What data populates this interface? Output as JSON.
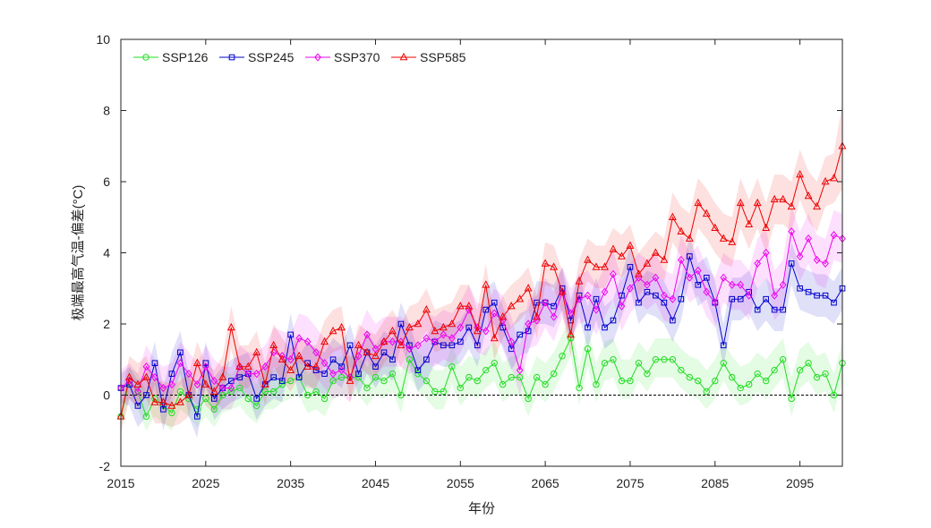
{
  "chart_data": {
    "type": "line",
    "xlabel": "年份",
    "ylabel": "极端最高气温-偏差(°C)",
    "xlim": [
      2015,
      2100
    ],
    "ylim": [
      -2,
      10
    ],
    "xticks": [
      2015,
      2025,
      2035,
      2045,
      2055,
      2065,
      2075,
      2085,
      2095
    ],
    "yticks": [
      -2,
      0,
      2,
      4,
      6,
      8,
      10
    ],
    "grid": false,
    "legend_position": "top-left",
    "reference_line_y": 0,
    "x": [
      2015,
      2016,
      2017,
      2018,
      2019,
      2020,
      2021,
      2022,
      2023,
      2024,
      2025,
      2026,
      2027,
      2028,
      2029,
      2030,
      2031,
      2032,
      2033,
      2034,
      2035,
      2036,
      2037,
      2038,
      2039,
      2040,
      2041,
      2042,
      2043,
      2044,
      2045,
      2046,
      2047,
      2048,
      2049,
      2050,
      2051,
      2052,
      2053,
      2054,
      2055,
      2056,
      2057,
      2058,
      2059,
      2060,
      2061,
      2062,
      2063,
      2064,
      2065,
      2066,
      2067,
      2068,
      2069,
      2070,
      2071,
      2072,
      2073,
      2074,
      2075,
      2076,
      2077,
      2078,
      2079,
      2080,
      2081,
      2082,
      2083,
      2084,
      2085,
      2086,
      2087,
      2088,
      2089,
      2090,
      2091,
      2092,
      2093,
      2094,
      2095,
      2096,
      2097,
      2098,
      2099,
      2100
    ],
    "series": [
      {
        "name": "SSP126",
        "color": "#22dd22",
        "marker": "circle",
        "values": [
          -0.6,
          0.4,
          0.1,
          -0.6,
          -0.1,
          -0.3,
          -0.5,
          0.1,
          -0.1,
          -0.4,
          -0.1,
          -0.4,
          0.0,
          0.1,
          0.2,
          -0.1,
          -0.3,
          0.1,
          0.1,
          0.3,
          0.4,
          0.5,
          0.0,
          0.1,
          -0.1,
          0.4,
          0.5,
          0.5,
          0.5,
          0.2,
          0.5,
          0.4,
          0.6,
          0.0,
          1.0,
          0.6,
          0.4,
          0.1,
          0.1,
          0.8,
          0.2,
          0.5,
          0.4,
          0.7,
          0.9,
          0.3,
          0.5,
          0.5,
          -0.1,
          0.5,
          0.3,
          0.6,
          1.1,
          1.6,
          0.2,
          1.3,
          0.3,
          0.9,
          1.0,
          0.4,
          0.4,
          0.9,
          0.6,
          1.0,
          1.0,
          1.0,
          0.7,
          0.5,
          0.4,
          0.1,
          0.4,
          0.9,
          0.5,
          0.2,
          0.3,
          0.6,
          0.4,
          0.7,
          1.0,
          -0.1,
          0.7,
          0.9,
          0.5,
          0.6,
          0.0,
          0.9
        ],
        "upper": [
          -0.3,
          0.8,
          0.6,
          0.1,
          0.5,
          0.3,
          0.1,
          0.8,
          0.5,
          0.3,
          0.6,
          0.2,
          0.7,
          0.6,
          0.8,
          0.5,
          0.3,
          0.7,
          0.7,
          0.9,
          1.0,
          1.1,
          0.6,
          0.7,
          0.5,
          1.0,
          1.1,
          1.1,
          1.1,
          0.8,
          1.1,
          1.0,
          1.2,
          0.6,
          1.6,
          1.2,
          1.0,
          0.7,
          0.7,
          1.4,
          0.8,
          1.1,
          1.0,
          1.3,
          1.5,
          0.9,
          1.1,
          1.1,
          0.5,
          1.1,
          0.9,
          1.2,
          1.7,
          2.2,
          0.8,
          1.9,
          0.9,
          1.5,
          1.6,
          1.0,
          1.0,
          1.5,
          1.2,
          1.6,
          1.6,
          1.6,
          1.3,
          1.1,
          1.0,
          0.7,
          1.0,
          1.5,
          1.1,
          0.8,
          0.9,
          1.2,
          1.0,
          1.3,
          1.6,
          0.5,
          1.3,
          1.5,
          1.1,
          1.2,
          0.6,
          1.5
        ],
        "lower": [
          -0.9,
          -0.1,
          -0.4,
          -1.0,
          -0.6,
          -0.8,
          -1.0,
          -0.4,
          -0.6,
          -0.9,
          -0.6,
          -0.9,
          -0.5,
          -0.4,
          -0.3,
          -0.6,
          -0.8,
          -0.4,
          -0.4,
          -0.2,
          -0.1,
          0.0,
          -0.5,
          -0.4,
          -0.6,
          -0.1,
          0.0,
          0.0,
          0.0,
          -0.3,
          0.0,
          -0.1,
          0.1,
          -0.5,
          0.5,
          0.1,
          -0.1,
          -0.4,
          -0.4,
          0.3,
          -0.3,
          0.0,
          -0.1,
          0.2,
          0.4,
          -0.2,
          0.0,
          0.0,
          -0.6,
          0.0,
          -0.2,
          0.1,
          0.6,
          1.1,
          -0.3,
          0.8,
          -0.2,
          0.4,
          0.5,
          -0.1,
          -0.1,
          0.4,
          0.1,
          0.5,
          0.5,
          0.5,
          0.2,
          0.0,
          -0.1,
          -0.4,
          -0.1,
          0.4,
          0.0,
          -0.3,
          -0.2,
          0.1,
          -0.1,
          0.2,
          0.5,
          -0.6,
          0.2,
          0.4,
          0.0,
          0.1,
          -0.5,
          0.4
        ]
      },
      {
        "name": "SSP245",
        "color": "#0000cc",
        "marker": "square",
        "values": [
          0.2,
          0.3,
          -0.3,
          0.0,
          0.9,
          -0.4,
          0.6,
          1.2,
          0.0,
          -0.6,
          0.9,
          -0.1,
          0.2,
          0.4,
          0.5,
          0.6,
          -0.1,
          0.3,
          0.5,
          0.4,
          1.7,
          0.5,
          0.9,
          0.7,
          0.6,
          1.0,
          0.8,
          1.4,
          0.6,
          1.2,
          0.8,
          1.2,
          1.0,
          2.0,
          1.4,
          0.7,
          1.0,
          1.5,
          1.4,
          1.4,
          1.5,
          1.9,
          1.4,
          2.4,
          2.6,
          1.9,
          1.3,
          1.7,
          1.8,
          2.6,
          2.6,
          2.5,
          3.0,
          2.1,
          2.8,
          1.9,
          2.7,
          1.9,
          2.1,
          2.8,
          3.6,
          2.6,
          2.9,
          2.8,
          2.6,
          2.1,
          2.7,
          3.9,
          3.1,
          3.3,
          2.6,
          1.4,
          2.7,
          2.7,
          2.9,
          2.4,
          2.7,
          2.4,
          2.4,
          3.7,
          3.0,
          2.9,
          2.8,
          2.8,
          2.6,
          3.0
        ],
        "upper": [
          0.6,
          0.8,
          0.4,
          0.6,
          1.5,
          0.2,
          1.2,
          1.8,
          0.6,
          0.0,
          1.5,
          0.5,
          0.8,
          1.0,
          1.1,
          1.2,
          0.5,
          0.9,
          1.1,
          1.0,
          2.3,
          1.1,
          1.5,
          1.3,
          1.2,
          1.6,
          1.4,
          2.0,
          1.2,
          1.8,
          1.4,
          1.8,
          1.6,
          2.6,
          2.0,
          1.3,
          1.6,
          2.1,
          2.0,
          2.0,
          2.1,
          2.5,
          2.0,
          3.0,
          3.2,
          2.5,
          1.9,
          2.3,
          2.4,
          3.2,
          3.2,
          3.1,
          3.6,
          2.7,
          3.4,
          2.5,
          3.3,
          2.5,
          2.7,
          3.4,
          4.2,
          3.2,
          3.5,
          3.4,
          3.2,
          2.7,
          3.3,
          4.5,
          3.7,
          3.9,
          3.2,
          2.0,
          3.3,
          3.3,
          3.5,
          3.0,
          3.3,
          3.0,
          3.0,
          4.3,
          3.6,
          3.5,
          3.4,
          3.4,
          3.2,
          3.6
        ],
        "lower": [
          -0.2,
          -0.3,
          -0.9,
          -0.6,
          0.3,
          -1.0,
          0.0,
          0.6,
          -0.6,
          -1.2,
          0.3,
          -0.7,
          -0.4,
          -0.2,
          -0.1,
          0.0,
          -0.7,
          -0.3,
          -0.1,
          -0.2,
          1.1,
          -0.1,
          0.3,
          0.1,
          0.0,
          0.4,
          0.2,
          0.8,
          0.0,
          0.6,
          0.2,
          0.6,
          0.4,
          1.4,
          0.8,
          0.1,
          0.4,
          0.9,
          0.8,
          0.8,
          0.9,
          1.3,
          0.8,
          1.8,
          2.0,
          1.3,
          0.7,
          1.1,
          1.2,
          2.0,
          2.0,
          1.9,
          2.4,
          1.5,
          2.2,
          1.3,
          2.1,
          1.3,
          1.5,
          2.2,
          3.0,
          2.0,
          2.3,
          2.2,
          2.0,
          1.5,
          2.1,
          3.3,
          2.5,
          2.7,
          2.0,
          0.8,
          2.1,
          2.1,
          2.3,
          1.8,
          2.1,
          1.8,
          1.8,
          3.1,
          2.4,
          2.3,
          2.2,
          2.2,
          2.0,
          2.4
        ]
      },
      {
        "name": "SSP370",
        "color": "#ee00ee",
        "marker": "diamond",
        "values": [
          0.2,
          0.4,
          0.1,
          0.8,
          0.5,
          0.2,
          0.3,
          0.9,
          0.6,
          0.3,
          0.8,
          0.4,
          0.2,
          0.2,
          0.8,
          0.6,
          0.6,
          0.8,
          1.2,
          1.1,
          1.0,
          1.6,
          1.5,
          1.2,
          0.9,
          0.6,
          0.7,
          0.5,
          1.1,
          1.7,
          1.3,
          1.5,
          1.5,
          1.5,
          1.3,
          1.4,
          1.6,
          1.5,
          1.7,
          1.6,
          1.9,
          2.4,
          1.9,
          1.8,
          2.3,
          2.1,
          1.5,
          0.7,
          2.0,
          2.1,
          2.6,
          2.2,
          2.9,
          2.3,
          2.7,
          2.8,
          2.4,
          2.9,
          3.4,
          2.5,
          3.0,
          3.3,
          3.1,
          3.3,
          2.8,
          2.7,
          3.8,
          3.3,
          3.5,
          2.9,
          2.6,
          3.3,
          3.1,
          3.1,
          2.8,
          3.7,
          4.0,
          2.8,
          3.1,
          4.6,
          3.9,
          4.4,
          3.8,
          3.7,
          4.5,
          4.4
        ],
        "upper": [
          0.7,
          0.9,
          0.6,
          1.4,
          1.0,
          0.8,
          0.9,
          1.5,
          1.2,
          0.9,
          1.4,
          1.0,
          0.8,
          0.8,
          1.4,
          1.2,
          1.2,
          1.4,
          1.9,
          1.8,
          1.7,
          2.3,
          2.2,
          1.9,
          1.6,
          1.3,
          1.4,
          1.2,
          1.8,
          2.4,
          2.0,
          2.2,
          2.2,
          2.2,
          2.0,
          2.1,
          2.3,
          2.2,
          2.4,
          2.3,
          2.6,
          3.1,
          2.6,
          2.5,
          3.0,
          2.8,
          2.2,
          1.4,
          2.7,
          2.8,
          3.3,
          2.9,
          3.6,
          3.0,
          3.4,
          3.5,
          3.1,
          3.6,
          4.1,
          3.2,
          3.7,
          4.0,
          3.8,
          4.0,
          3.5,
          3.4,
          4.5,
          4.0,
          4.2,
          3.6,
          3.3,
          4.0,
          3.8,
          3.8,
          3.5,
          4.4,
          4.7,
          3.5,
          3.8,
          5.3,
          4.6,
          5.1,
          4.5,
          4.4,
          5.2,
          5.1
        ],
        "lower": [
          -0.3,
          -0.1,
          -0.4,
          0.2,
          0.0,
          -0.4,
          -0.3,
          0.3,
          0.0,
          -0.3,
          0.2,
          -0.2,
          -0.4,
          -0.4,
          0.2,
          0.0,
          0.0,
          0.2,
          0.5,
          0.4,
          0.3,
          0.9,
          0.8,
          0.5,
          0.2,
          -0.1,
          0.0,
          -0.2,
          0.4,
          1.0,
          0.6,
          0.8,
          0.8,
          0.8,
          0.6,
          0.7,
          0.9,
          0.8,
          1.0,
          0.9,
          1.2,
          1.7,
          1.2,
          1.1,
          1.6,
          1.4,
          0.8,
          0.0,
          1.3,
          1.4,
          1.9,
          1.5,
          2.2,
          1.6,
          2.0,
          2.1,
          1.7,
          2.2,
          2.7,
          1.8,
          2.3,
          2.6,
          2.4,
          2.6,
          2.1,
          2.0,
          3.1,
          2.6,
          2.8,
          2.2,
          1.9,
          2.6,
          2.4,
          2.4,
          2.1,
          3.0,
          3.3,
          2.1,
          2.4,
          3.9,
          3.2,
          3.7,
          3.1,
          3.0,
          3.8,
          3.7
        ]
      },
      {
        "name": "SSP585",
        "color": "#ee0000",
        "marker": "triangle",
        "values": [
          -0.6,
          0.5,
          0.3,
          0.5,
          -0.2,
          -0.2,
          -0.3,
          -0.2,
          0.0,
          0.9,
          0.3,
          0.1,
          0.5,
          1.9,
          0.8,
          0.8,
          1.2,
          0.3,
          1.4,
          1.0,
          0.7,
          1.1,
          0.8,
          0.8,
          1.5,
          1.8,
          1.9,
          0.4,
          1.4,
          1.2,
          1.1,
          1.5,
          1.8,
          1.4,
          1.9,
          2.0,
          2.4,
          1.8,
          1.9,
          2.0,
          2.5,
          2.5,
          1.8,
          3.1,
          1.6,
          2.2,
          2.5,
          2.7,
          3.0,
          2.2,
          3.7,
          3.6,
          2.9,
          1.7,
          3.2,
          3.8,
          3.6,
          3.6,
          4.1,
          3.9,
          4.2,
          3.4,
          3.7,
          4.0,
          3.8,
          5.0,
          4.6,
          4.4,
          5.4,
          5.1,
          4.7,
          4.4,
          4.3,
          5.4,
          4.8,
          5.4,
          4.7,
          5.5,
          5.5,
          5.3,
          6.2,
          5.6,
          5.3,
          6.0,
          6.1,
          7.0
        ],
        "upper": [
          -0.1,
          1.1,
          0.9,
          1.1,
          0.4,
          0.4,
          0.3,
          0.4,
          0.6,
          1.5,
          0.9,
          0.7,
          1.1,
          2.5,
          1.4,
          1.4,
          1.8,
          0.9,
          2.0,
          1.6,
          1.3,
          1.7,
          1.4,
          1.4,
          2.1,
          2.4,
          2.5,
          1.0,
          2.0,
          1.8,
          1.7,
          2.1,
          2.4,
          2.0,
          2.5,
          2.6,
          3.0,
          2.4,
          2.5,
          2.6,
          3.1,
          3.1,
          2.4,
          3.7,
          2.2,
          2.8,
          3.1,
          3.3,
          3.6,
          2.8,
          4.3,
          4.2,
          3.5,
          2.3,
          3.8,
          4.4,
          4.2,
          4.2,
          4.7,
          4.5,
          4.8,
          4.0,
          4.3,
          4.6,
          4.4,
          5.7,
          5.3,
          5.1,
          6.1,
          5.8,
          5.4,
          5.1,
          5.0,
          6.1,
          5.5,
          6.1,
          5.4,
          6.2,
          6.2,
          6.0,
          6.9,
          6.3,
          6.0,
          6.7,
          6.8,
          8.2
        ],
        "lower": [
          -1.1,
          -0.1,
          -0.3,
          -0.1,
          -0.8,
          -0.8,
          -0.9,
          -0.8,
          -0.6,
          0.3,
          -0.3,
          -0.5,
          -0.1,
          1.3,
          0.2,
          0.2,
          0.6,
          -0.3,
          0.8,
          0.4,
          0.1,
          0.5,
          0.2,
          0.2,
          0.9,
          1.2,
          1.3,
          -0.2,
          0.8,
          0.6,
          0.5,
          0.9,
          1.2,
          0.8,
          1.3,
          1.4,
          1.8,
          1.2,
          1.3,
          1.4,
          1.9,
          1.9,
          1.2,
          2.5,
          1.0,
          1.6,
          1.9,
          2.1,
          2.4,
          1.6,
          3.1,
          3.0,
          2.3,
          1.1,
          2.6,
          3.2,
          3.0,
          3.0,
          3.5,
          3.3,
          3.6,
          2.8,
          3.1,
          3.4,
          3.2,
          4.3,
          3.9,
          3.7,
          4.7,
          4.4,
          4.0,
          3.7,
          3.6,
          4.7,
          4.1,
          4.7,
          4.0,
          4.8,
          4.8,
          4.6,
          5.5,
          4.9,
          4.6,
          5.3,
          5.4,
          5.8
        ]
      }
    ]
  }
}
